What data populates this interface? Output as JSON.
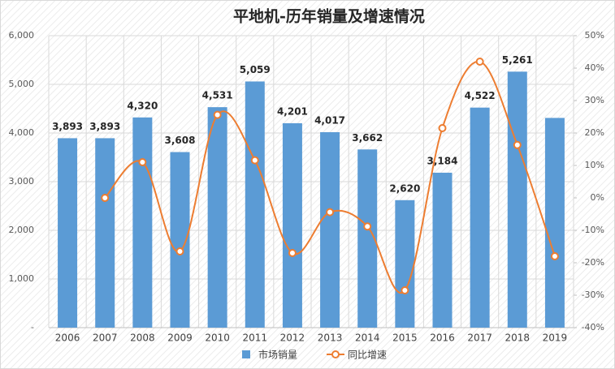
{
  "chart_data": {
    "type": "bar_line",
    "title": "平地机-历年销量及增速情况",
    "categories": [
      "2006",
      "2007",
      "2008",
      "2009",
      "2010",
      "2011",
      "2012",
      "2013",
      "2014",
      "2015",
      "2016",
      "2017",
      "2018",
      "2019"
    ],
    "series": [
      {
        "name": "市场销量",
        "type": "bar",
        "color": "#5b9bd5",
        "values": [
          3893,
          3893,
          4320,
          3608,
          4531,
          5059,
          4201,
          4017,
          3662,
          2620,
          3184,
          4522,
          5261,
          4310
        ],
        "value_labels": [
          "3,893",
          "3,893",
          "4,320",
          "3,608",
          "4,531",
          "5,059",
          "4,201",
          "4,017",
          "3,662",
          "2,620",
          "3,184",
          "4,522",
          "5,261",
          null
        ]
      },
      {
        "name": "同比增速",
        "type": "line",
        "axis": "y2",
        "color": "#ed7d31",
        "values": [
          null,
          0,
          11,
          -16.5,
          25.6,
          11.6,
          -17,
          -4.4,
          -8.8,
          -28.5,
          21.5,
          42,
          16.3,
          -18
        ]
      }
    ],
    "ylim": [
      0,
      6000
    ],
    "yticks": [
      {
        "value": 0,
        "label": "-"
      },
      {
        "value": 1000,
        "label": "1,000"
      },
      {
        "value": 2000,
        "label": "2,000"
      },
      {
        "value": 3000,
        "label": "3,000"
      },
      {
        "value": 4000,
        "label": "4,000"
      },
      {
        "value": 5000,
        "label": "5,000"
      },
      {
        "value": 6000,
        "label": "6,000"
      }
    ],
    "y2lim": [
      -40,
      50
    ],
    "y2ticks": [
      {
        "value": -40,
        "label": "-40%"
      },
      {
        "value": -30,
        "label": "-30%"
      },
      {
        "value": -20,
        "label": "-20%"
      },
      {
        "value": -10,
        "label": "-10%"
      },
      {
        "value": 0,
        "label": "0%"
      },
      {
        "value": 10,
        "label": "10%"
      },
      {
        "value": 20,
        "label": "20%"
      },
      {
        "value": 30,
        "label": "30%"
      },
      {
        "value": 40,
        "label": "40%"
      },
      {
        "value": 50,
        "label": "50%"
      }
    ],
    "grid": true,
    "legend": "bottom"
  }
}
